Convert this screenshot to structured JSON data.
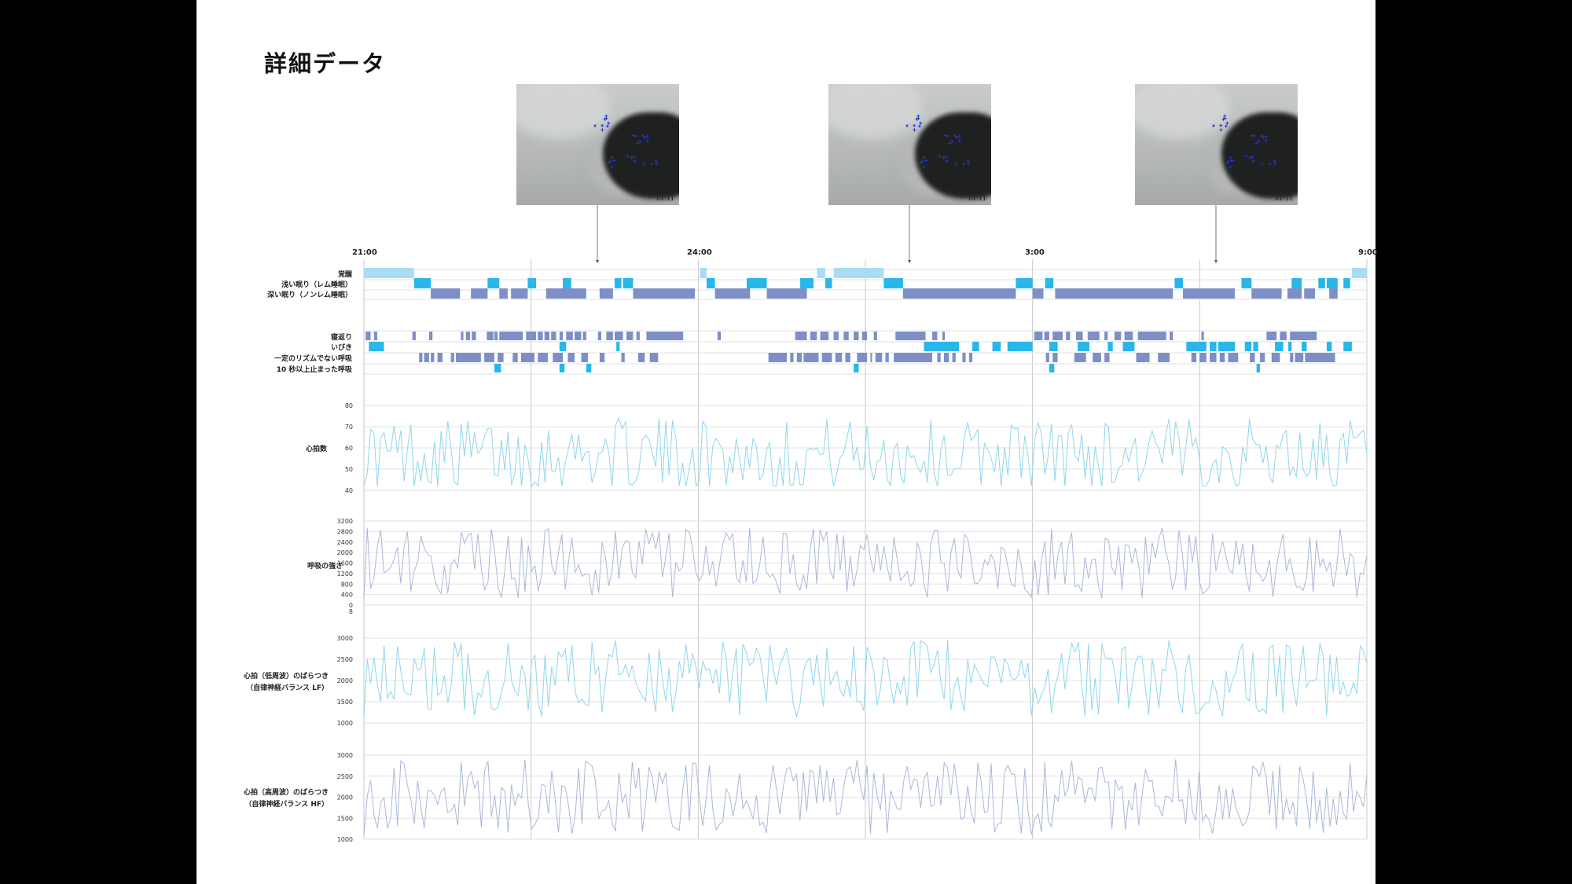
{
  "title": "詳細データ",
  "thumbnails": [
    {
      "timestamp": "01:11"
    },
    {
      "timestamp": "01:11"
    },
    {
      "timestamp": "01:11"
    }
  ],
  "colors": {
    "awake": "#a9dcf3",
    "rem": "#29b6e8",
    "deep": "#7e8fc8",
    "hr_line": "#8fd6ea",
    "resp_line": "#aab8d8",
    "grid": "#d9d9d9"
  },
  "chart_data": [
    {
      "type": "timeline",
      "title": "",
      "x_range": [
        "21:00",
        "9:00"
      ],
      "time_labels": [
        "21:00",
        "24:00",
        "3:00",
        "9:00"
      ],
      "rows": [
        {
          "label": "覚醒",
          "color": "#a9dcf3",
          "segments": [
            [
              0.0,
              0.6
            ],
            [
              4.02,
              4.1
            ],
            [
              5.42,
              5.52
            ],
            [
              5.62,
              6.22
            ],
            [
              11.82,
              12.0
            ]
          ]
        },
        {
          "label": "浅い眠り（レム睡眠）",
          "color": "#29b6e8",
          "segments": [
            [
              0.6,
              0.8
            ],
            [
              1.48,
              1.62
            ],
            [
              1.96,
              2.06
            ],
            [
              2.38,
              2.48
            ],
            [
              3.0,
              3.08
            ],
            [
              3.1,
              3.22
            ],
            [
              4.1,
              4.2
            ],
            [
              4.58,
              4.82
            ],
            [
              5.22,
              5.38
            ],
            [
              5.52,
              5.6
            ],
            [
              6.22,
              6.45
            ],
            [
              7.8,
              8.0
            ],
            [
              8.15,
              8.25
            ],
            [
              9.7,
              9.8
            ],
            [
              10.5,
              10.62
            ],
            [
              11.1,
              11.22
            ],
            [
              11.42,
              11.5
            ],
            [
              11.52,
              11.65
            ],
            [
              11.72,
              11.8
            ]
          ]
        },
        {
          "label": "深い眠り（ノンレム睡眠）",
          "color": "#7e8fc8",
          "segments": [
            [
              0.8,
              1.15
            ],
            [
              1.28,
              1.48
            ],
            [
              1.62,
              1.72
            ],
            [
              1.76,
              1.96
            ],
            [
              2.18,
              2.66
            ],
            [
              2.82,
              2.98
            ],
            [
              3.22,
              3.96
            ],
            [
              4.2,
              4.62
            ],
            [
              4.82,
              5.3
            ],
            [
              6.45,
              7.8
            ],
            [
              8.0,
              8.13
            ],
            [
              8.27,
              9.68
            ],
            [
              9.8,
              10.42
            ],
            [
              10.62,
              10.98
            ],
            [
              11.05,
              11.22
            ],
            [
              11.25,
              11.38
            ],
            [
              11.55,
              11.65
            ]
          ]
        }
      ]
    },
    {
      "type": "timeline",
      "title": "",
      "rows": [
        {
          "label": "寝返り",
          "color": "#7e8fc8",
          "segments": [
            [
              0.02,
              0.08
            ],
            [
              0.12,
              0.16
            ],
            [
              0.58,
              0.62
            ],
            [
              0.78,
              0.82
            ],
            [
              1.16,
              1.19
            ],
            [
              1.22,
              1.27
            ],
            [
              1.29,
              1.34
            ],
            [
              1.47,
              1.55
            ],
            [
              1.56,
              1.6
            ],
            [
              1.62,
              1.9
            ],
            [
              1.94,
              2.06
            ],
            [
              2.08,
              2.14
            ],
            [
              2.16,
              2.22
            ],
            [
              2.24,
              2.3
            ],
            [
              2.34,
              2.38
            ],
            [
              2.42,
              2.5
            ],
            [
              2.52,
              2.6
            ],
            [
              2.62,
              2.66
            ],
            [
              2.8,
              2.84
            ],
            [
              2.9,
              2.98
            ],
            [
              3.0,
              3.1
            ],
            [
              3.14,
              3.22
            ],
            [
              3.26,
              3.3
            ],
            [
              3.38,
              3.82
            ],
            [
              4.23,
              4.27
            ],
            [
              5.16,
              5.3
            ],
            [
              5.34,
              5.42
            ],
            [
              5.46,
              5.56
            ],
            [
              5.62,
              5.68
            ],
            [
              5.74,
              5.8
            ],
            [
              5.86,
              5.92
            ],
            [
              5.96,
              6.02
            ],
            [
              6.1,
              6.14
            ],
            [
              6.36,
              6.72
            ],
            [
              6.8,
              6.86
            ],
            [
              6.92,
              6.95
            ],
            [
              8.02,
              8.12
            ],
            [
              8.14,
              8.2
            ],
            [
              8.24,
              8.36
            ],
            [
              8.4,
              8.45
            ],
            [
              8.52,
              8.6
            ],
            [
              8.66,
              8.8
            ],
            [
              8.86,
              8.9
            ],
            [
              8.98,
              9.06
            ],
            [
              9.1,
              9.2
            ],
            [
              9.26,
              9.6
            ],
            [
              9.64,
              9.68
            ],
            [
              10.02,
              10.05
            ],
            [
              10.8,
              10.92
            ],
            [
              10.96,
              11.04
            ],
            [
              11.08,
              11.4
            ]
          ]
        },
        {
          "label": "いびき",
          "color": "#29b6e8",
          "segments": [
            [
              0.06,
              0.24
            ],
            [
              2.34,
              2.42
            ],
            [
              3.02,
              3.06
            ],
            [
              6.7,
              7.12
            ],
            [
              7.28,
              7.36
            ],
            [
              7.52,
              7.62
            ],
            [
              7.7,
              8.0
            ],
            [
              8.2,
              8.3
            ],
            [
              8.54,
              8.68
            ],
            [
              8.9,
              8.96
            ],
            [
              9.08,
              9.22
            ],
            [
              9.84,
              10.08
            ],
            [
              10.12,
              10.2
            ],
            [
              10.22,
              10.42
            ],
            [
              10.54,
              10.62
            ],
            [
              10.64,
              10.7
            ],
            [
              10.9,
              11.0
            ],
            [
              11.06,
              11.1
            ],
            [
              11.22,
              11.28
            ],
            [
              11.52,
              11.58
            ],
            [
              11.72,
              11.82
            ]
          ]
        },
        {
          "label": "一定のリズムでない呼吸",
          "color": "#7e8fc8",
          "segments": [
            [
              0.66,
              0.7
            ],
            [
              0.72,
              0.78
            ],
            [
              0.8,
              0.84
            ],
            [
              0.88,
              0.94
            ],
            [
              1.04,
              1.08
            ],
            [
              1.1,
              1.4
            ],
            [
              1.44,
              1.56
            ],
            [
              1.6,
              1.67
            ],
            [
              1.78,
              1.84
            ],
            [
              1.88,
              2.04
            ],
            [
              2.08,
              2.2
            ],
            [
              2.26,
              2.38
            ],
            [
              2.44,
              2.52
            ],
            [
              2.6,
              2.68
            ],
            [
              2.82,
              2.88
            ],
            [
              3.08,
              3.12
            ],
            [
              3.28,
              3.36
            ],
            [
              3.42,
              3.52
            ],
            [
              4.84,
              5.06
            ],
            [
              5.1,
              5.14
            ],
            [
              5.18,
              5.24
            ],
            [
              5.26,
              5.44
            ],
            [
              5.48,
              5.6
            ],
            [
              5.64,
              5.72
            ],
            [
              5.76,
              5.82
            ],
            [
              5.9,
              6.02
            ],
            [
              6.06,
              6.08
            ],
            [
              6.12,
              6.2
            ],
            [
              6.24,
              6.28
            ],
            [
              6.34,
              6.8
            ],
            [
              6.86,
              6.9
            ],
            [
              6.94,
              7.0
            ],
            [
              7.04,
              7.08
            ],
            [
              7.16,
              7.2
            ],
            [
              7.24,
              7.28
            ],
            [
              8.16,
              8.2
            ],
            [
              8.24,
              8.3
            ],
            [
              8.5,
              8.64
            ],
            [
              8.72,
              8.82
            ],
            [
              8.86,
              8.92
            ],
            [
              9.24,
              9.4
            ],
            [
              9.5,
              9.64
            ],
            [
              9.9,
              9.96
            ],
            [
              10.0,
              10.08
            ],
            [
              10.12,
              10.2
            ],
            [
              10.24,
              10.3
            ],
            [
              10.34,
              10.46
            ],
            [
              10.6,
              10.66
            ],
            [
              10.72,
              10.78
            ],
            [
              10.86,
              10.96
            ],
            [
              11.08,
              11.12
            ],
            [
              11.14,
              11.24
            ],
            [
              11.26,
              11.62
            ]
          ]
        },
        {
          "label": "10 秒以上止まった呼吸",
          "color": "#29b6e8",
          "segments": [
            [
              1.56,
              1.64
            ],
            [
              2.34,
              2.4
            ],
            [
              2.66,
              2.72
            ],
            [
              5.86,
              5.92
            ],
            [
              8.2,
              8.26
            ],
            [
              10.68,
              10.72
            ]
          ]
        }
      ]
    },
    {
      "type": "line",
      "title": "",
      "ylabel": "心拍数",
      "ylim": [
        40,
        80
      ],
      "yticks": [
        40,
        50,
        60,
        70,
        80
      ],
      "xlim": [
        0,
        12
      ],
      "points_count": 300,
      "min": 42,
      "max": 80,
      "mean": 57
    },
    {
      "type": "line",
      "title": "",
      "ylabel": "呼吸の強さ",
      "ylim": [
        0,
        3200
      ],
      "yticks": [
        "0",
        "400",
        "800",
        "1200",
        "1600",
        "2000",
        "2400",
        "2800",
        "3200"
      ],
      "extra_ticks": [
        "8"
      ],
      "xlim": [
        0,
        12
      ],
      "points_count": 300,
      "min": 0,
      "max": 3000,
      "mean": 1600
    },
    {
      "type": "line",
      "title": "",
      "ylabel": "心拍（低周波）のばらつき",
      "ylabel2": "（自律神経バランス LF）",
      "ylim": [
        1000,
        3000
      ],
      "yticks": [
        1000,
        1500,
        2000,
        2500,
        3000
      ],
      "xlim": [
        0,
        12
      ],
      "points_count": 300,
      "min": 1000,
      "max": 3000,
      "mean": 2050
    },
    {
      "type": "line",
      "title": "",
      "ylabel": "心拍（高周波）のばらつき",
      "ylabel2": "（自律神経バランス HF）",
      "ylim": [
        1000,
        3000
      ],
      "yticks": [
        1000,
        1500,
        2000,
        2500,
        3000
      ],
      "xlim": [
        0,
        12
      ],
      "points_count": 300,
      "min": 1000,
      "max": 3000,
      "mean": 2000
    }
  ]
}
